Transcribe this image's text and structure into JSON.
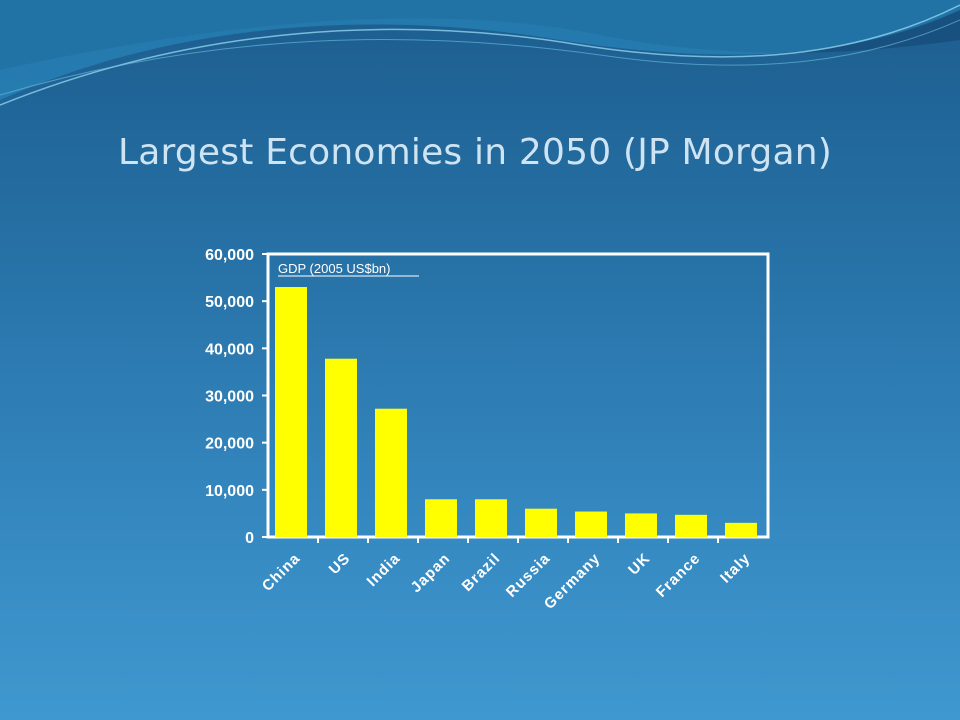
{
  "slide": {
    "title": "Largest Economies in 2050 (JP Morgan)"
  },
  "colors": {
    "background_top": "#1d5d8e",
    "background_bottom": "#3f98cf",
    "title_text": "#cfe4f2",
    "bar_fill": "#ffff00",
    "axis": "#ffffff"
  },
  "chart_data": {
    "type": "bar",
    "title": "",
    "series_label": "GDP (2005 US$bn)",
    "categories": [
      "China",
      "US",
      "India",
      "Japan",
      "Brazil",
      "Russia",
      "Germany",
      "UK",
      "France",
      "Italy"
    ],
    "values": [
      53000,
      37800,
      27200,
      8000,
      8000,
      6000,
      5400,
      5000,
      4700,
      3000
    ],
    "ylim": [
      0,
      60000
    ],
    "yticks": [
      0,
      10000,
      20000,
      30000,
      40000,
      50000,
      60000
    ],
    "ytick_labels": [
      "0",
      "10,000",
      "20,000",
      "30,000",
      "40,000",
      "50,000",
      "60,000"
    ],
    "xlabel": "",
    "ylabel": "",
    "grid": false,
    "legend_position": "top-left"
  }
}
